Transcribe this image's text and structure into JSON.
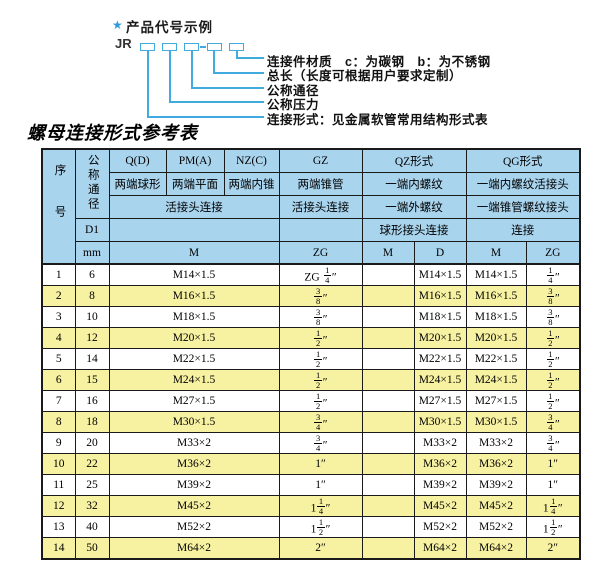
{
  "diagram": {
    "star": "★",
    "title": "产品代号示例",
    "prefix": "JR",
    "labels": [
      "连接件材质　c：为碳钢　b：为不锈钢",
      "总长（长度可根据用户要求定制）",
      "公称通径",
      "公称压力",
      "连接形式：见金属软管常用结构形式表"
    ]
  },
  "table_title": "螺母连接形式参考表",
  "table": {
    "header": {
      "seq": "序号",
      "dn": "公称通径",
      "d1": "D1",
      "mm": "mm",
      "col_q": "Q(D)",
      "col_pm": "PM(A)",
      "col_nz": "NZ(C)",
      "col_gz": "GZ",
      "col_qz": "QZ形式",
      "col_qg": "QG形式",
      "q_desc": "两端球形",
      "pm_desc": "两端平面",
      "nz_desc": "两端内锥",
      "gz_desc": "两端锥管",
      "qz_desc1": "一端内螺纹",
      "qg_desc1": "一端内螺纹活接头",
      "union_conn": "活接头连接",
      "gz_conn": "活接头连接",
      "qz_desc2": "一端外螺纹",
      "qg_desc2": "一端锥管螺纹接头",
      "qz_conn": "球形接头连接",
      "qg_conn": "连接",
      "m": "M",
      "zg": "ZG",
      "qz_m": "M",
      "qz_d": "D",
      "qg_m": "M",
      "qg_zg": "ZG"
    },
    "rows": [
      [
        "1",
        "6",
        "M14×1.5",
        "ZG {1/4}″",
        "",
        "M14×1.5",
        "M14×1.5",
        "{1/4}″"
      ],
      [
        "2",
        "8",
        "M16×1.5",
        "{3/8}″",
        "",
        "M16×1.5",
        "M16×1.5",
        "{3/8}″"
      ],
      [
        "3",
        "10",
        "M18×1.5",
        "{3/8}″",
        "",
        "M18×1.5",
        "M18×1.5",
        "{3/8}″"
      ],
      [
        "4",
        "12",
        "M20×1.5",
        "{1/2}″",
        "",
        "M20×1.5",
        "M20×1.5",
        "{1/2}″"
      ],
      [
        "5",
        "14",
        "M22×1.5",
        "{1/2}″",
        "",
        "M22×1.5",
        "M22×1.5",
        "{1/2}″"
      ],
      [
        "6",
        "15",
        "M24×1.5",
        "{1/2}″",
        "",
        "M24×1.5",
        "M24×1.5",
        "{1/2}″"
      ],
      [
        "7",
        "16",
        "M27×1.5",
        "{1/2}″",
        "",
        "M27×1.5",
        "M27×1.5",
        "{1/2}″"
      ],
      [
        "8",
        "18",
        "M30×1.5",
        "{3/4}″",
        "",
        "M30×1.5",
        "M30×1.5",
        "{3/4}″"
      ],
      [
        "9",
        "20",
        "M33×2",
        "{3/4}″",
        "",
        "M33×2",
        "M33×2",
        "{3/4}″"
      ],
      [
        "10",
        "22",
        "M36×2",
        "1″",
        "",
        "M36×2",
        "M36×2",
        "1″"
      ],
      [
        "11",
        "25",
        "M39×2",
        "1″",
        "",
        "M39×2",
        "M39×2",
        "1″"
      ],
      [
        "12",
        "32",
        "M45×2",
        "1{1/4}″",
        "",
        "M45×2",
        "M45×2",
        "1{1/4}″"
      ],
      [
        "13",
        "40",
        "M52×2",
        "1{1/2}″",
        "",
        "M52×2",
        "M52×2",
        "1{1/2}″"
      ],
      [
        "14",
        "50",
        "M64×2",
        "2″",
        "",
        "M64×2",
        "M64×2",
        "2″"
      ]
    ]
  },
  "colors": {
    "accent_line": "#41aade",
    "star_blue": "#2f9bd8",
    "header_bg": "#a9d4ee",
    "alt_row_bg": "#f7f1a2",
    "border": "#1a1a1a"
  }
}
